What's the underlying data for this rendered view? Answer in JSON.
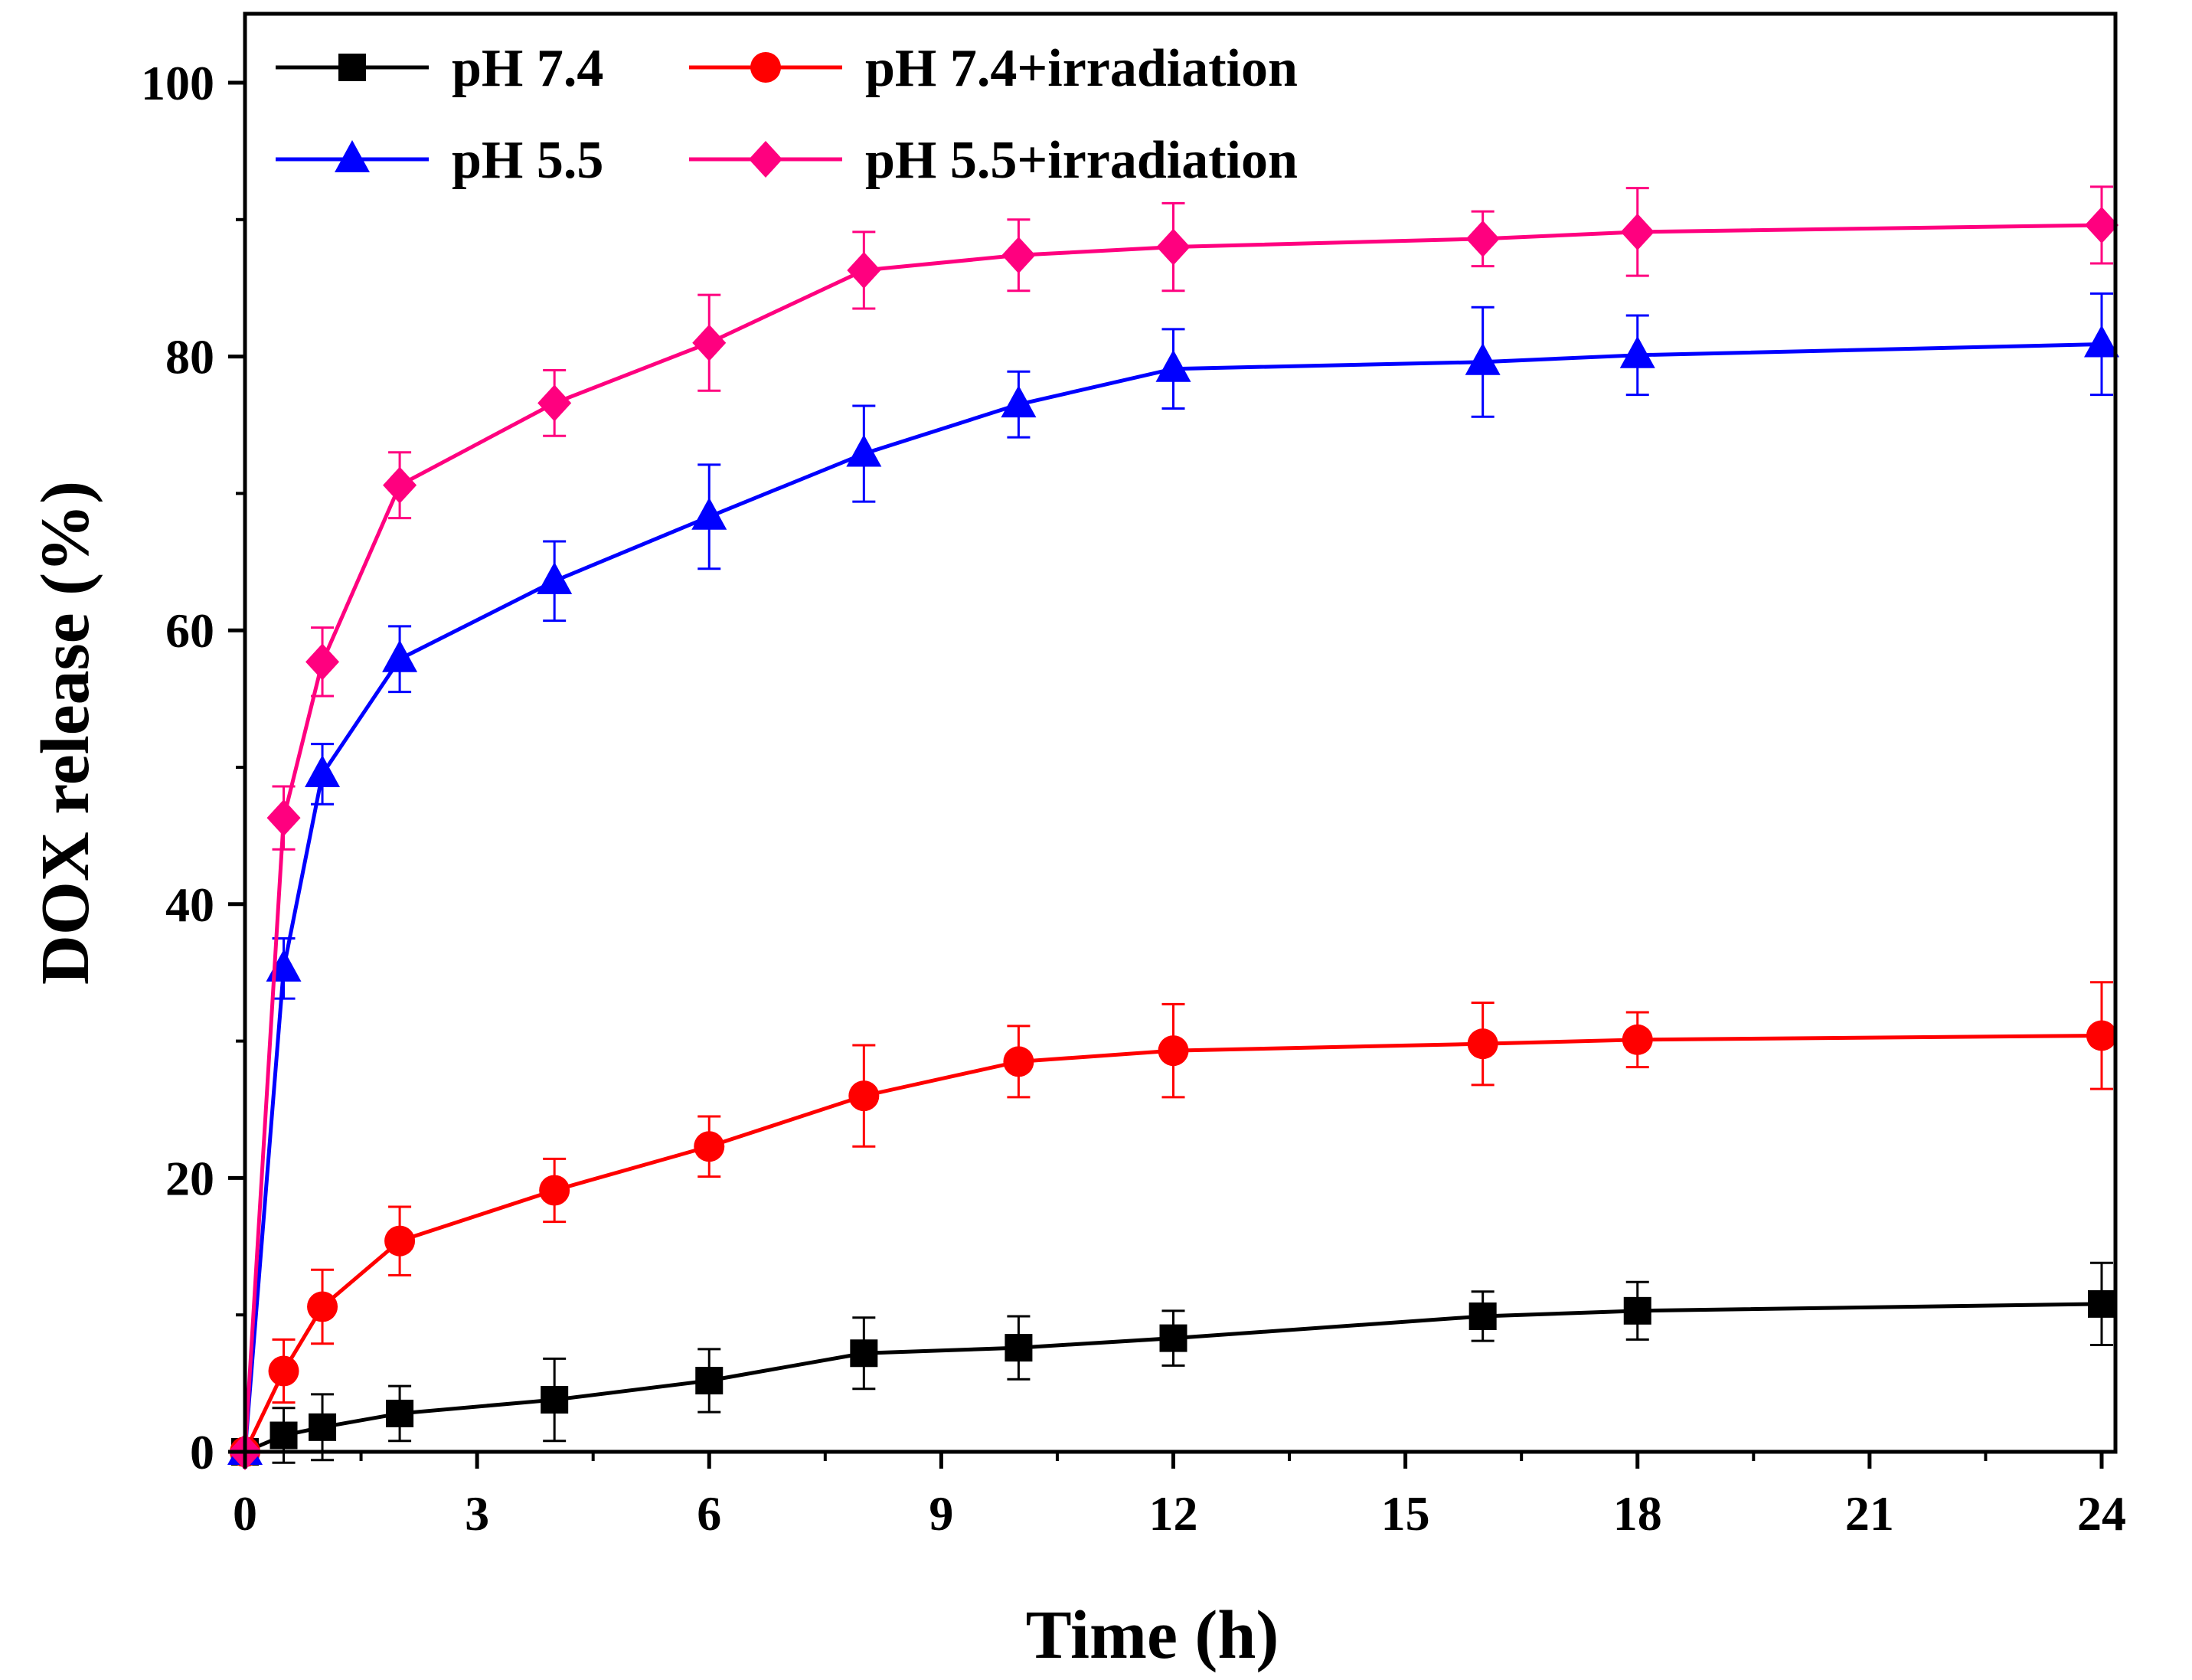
{
  "chart_data": {
    "type": "line",
    "title": "",
    "xlabel": "Time (h)",
    "ylabel": "DOX release (%)",
    "xlim": [
      0,
      24.5
    ],
    "ylim": [
      0,
      105
    ],
    "xticks": [
      0,
      3,
      6,
      9,
      12,
      15,
      18,
      21,
      24
    ],
    "xtick_labels": [
      "0",
      "3",
      "6",
      "9",
      "12",
      "15",
      "18",
      "21",
      "24"
    ],
    "yticks": [
      0,
      20,
      40,
      60,
      80,
      100
    ],
    "ytick_labels": [
      "0",
      "20",
      "40",
      "60",
      "80",
      "100"
    ],
    "grid": false,
    "legend_position": "top-left",
    "x": [
      0,
      0.5,
      1,
      2,
      4,
      6,
      8,
      10,
      12,
      16,
      18,
      24
    ],
    "series": [
      {
        "name": "pH 7.4",
        "color": "#000000",
        "marker": "square",
        "values": [
          0,
          1.2,
          1.8,
          2.8,
          3.8,
          5.2,
          7.2,
          7.6,
          8.3,
          9.9,
          10.3,
          10.8
        ],
        "errors": [
          0,
          2.0,
          2.4,
          2.0,
          3.0,
          2.3,
          2.6,
          2.3,
          2.0,
          1.8,
          2.1,
          3.0
        ]
      },
      {
        "name": "pH 7.4+irradiation",
        "color": "#ff0000",
        "marker": "circle",
        "values": [
          0,
          5.9,
          10.6,
          15.4,
          19.1,
          22.3,
          26.0,
          28.5,
          29.3,
          29.8,
          30.1,
          30.4
        ],
        "errors": [
          0,
          2.3,
          2.7,
          2.5,
          2.3,
          2.2,
          3.7,
          2.6,
          3.4,
          3.0,
          2.0,
          3.9
        ]
      },
      {
        "name": "pH 5.5",
        "color": "#0000ff",
        "marker": "triangle",
        "values": [
          0,
          35.3,
          49.5,
          57.9,
          63.6,
          68.3,
          72.9,
          76.5,
          79.1,
          79.6,
          80.1,
          80.9
        ],
        "errors": [
          0,
          2.2,
          2.2,
          2.4,
          2.9,
          3.8,
          3.5,
          2.4,
          2.9,
          4.0,
          2.9,
          3.7
        ]
      },
      {
        "name": "pH 5.5+irradiation",
        "color": "#ff007f",
        "marker": "diamond",
        "values": [
          0,
          46.3,
          57.7,
          70.6,
          76.6,
          81.0,
          86.3,
          87.4,
          88.0,
          88.6,
          89.1,
          89.6
        ],
        "errors": [
          0,
          2.3,
          2.5,
          2.4,
          2.4,
          3.5,
          2.8,
          2.6,
          3.2,
          2.0,
          3.2,
          2.8
        ]
      }
    ]
  }
}
